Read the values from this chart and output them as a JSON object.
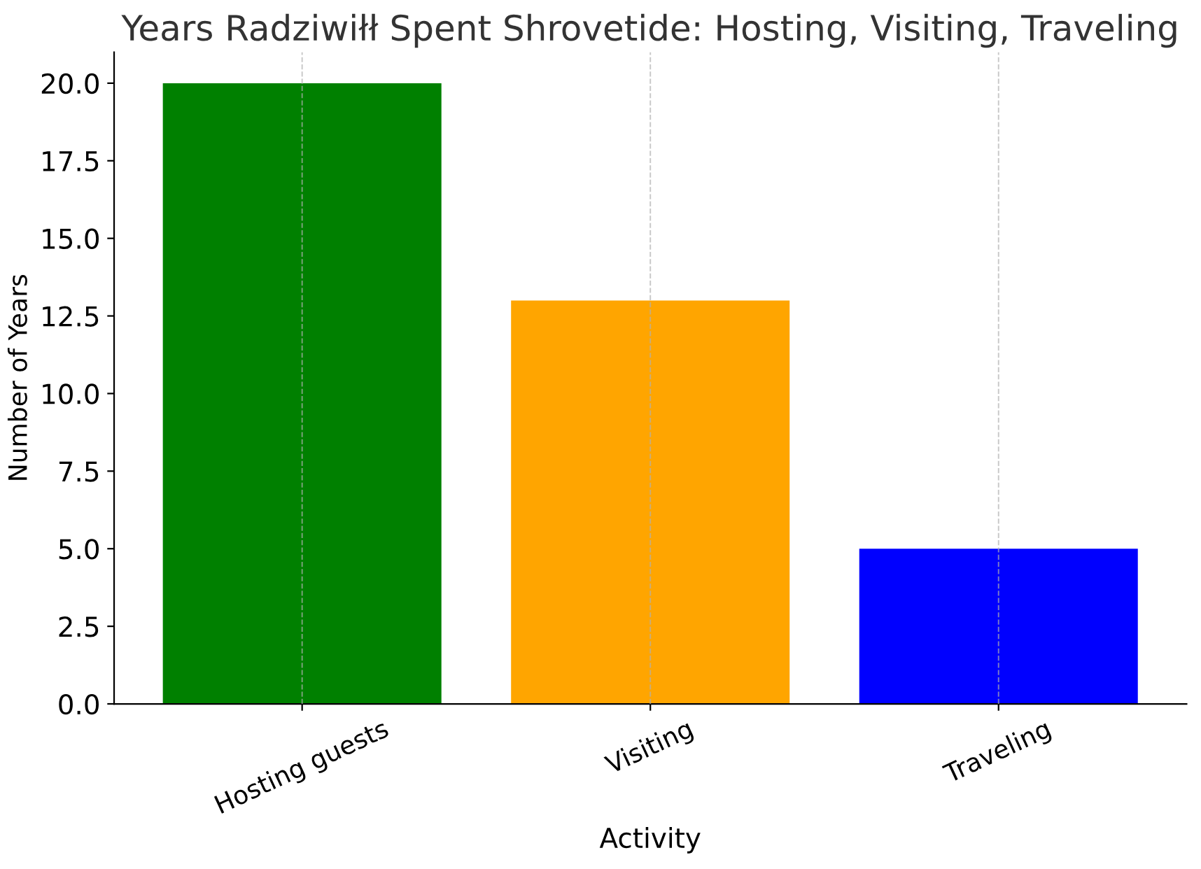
{
  "chart_data": {
    "type": "bar",
    "title": "Years Radziwiłł Spent Shrovetide: Hosting, Visiting, Traveling",
    "xlabel": "Activity",
    "ylabel": "Number of Years",
    "categories": [
      "Hosting guests",
      "Visiting",
      "Traveling"
    ],
    "values": [
      20,
      13,
      5
    ],
    "colors": [
      "#008000",
      "#ffa500",
      "#0000ff"
    ],
    "ylim": [
      0,
      21
    ],
    "yticks": [
      {
        "value": 0,
        "label": "0.0"
      },
      {
        "value": 2.5,
        "label": "2.5"
      },
      {
        "value": 5,
        "label": "5.0"
      },
      {
        "value": 7.5,
        "label": "7.5"
      },
      {
        "value": 10,
        "label": "10.0"
      },
      {
        "value": 12.5,
        "label": "12.5"
      },
      {
        "value": 15,
        "label": "15.0"
      },
      {
        "value": 17.5,
        "label": "17.5"
      },
      {
        "value": 20,
        "label": "20.0"
      }
    ],
    "grid": "x"
  }
}
